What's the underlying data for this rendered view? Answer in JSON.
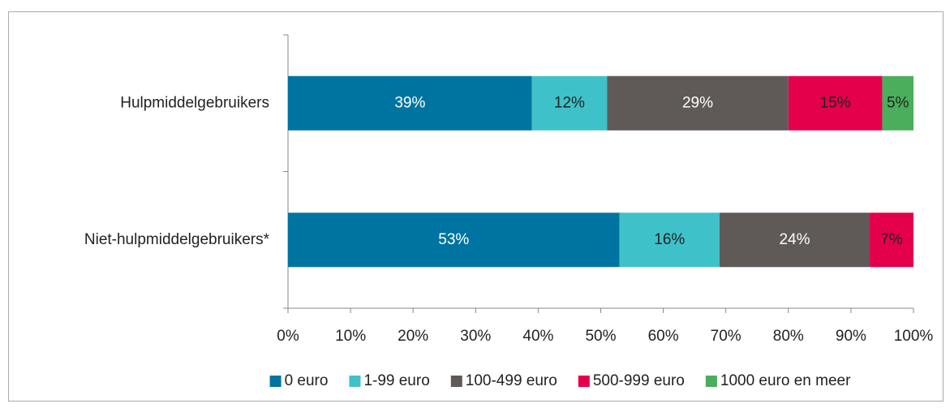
{
  "chart_data": {
    "type": "stacked_barh",
    "categories": [
      "Hulpmiddelgebruikers",
      "Niet-hulpmiddelgebruikers*"
    ],
    "series": [
      {
        "name": "0 euro",
        "color": "#0074a0",
        "label_color": "#ffffff",
        "values": [
          39,
          53
        ],
        "value_labels": [
          "39%",
          "53%"
        ]
      },
      {
        "name": "1-99 euro",
        "color": "#3fc1c9",
        "label_color": "#222222",
        "values": [
          12,
          16
        ],
        "value_labels": [
          "12%",
          "16%"
        ]
      },
      {
        "name": "100-499 euro",
        "color": "#5f5a57",
        "label_color": "#ffffff",
        "values": [
          29,
          24
        ],
        "value_labels": [
          "29%",
          "24%"
        ]
      },
      {
        "name": "500-999 euro",
        "color": "#e4004b",
        "label_color": "#222222",
        "values": [
          15,
          7
        ],
        "value_labels": [
          "15%",
          "7%"
        ]
      },
      {
        "name": "1000 euro en meer",
        "color": "#4aae5c",
        "label_color": "#222222",
        "values": [
          5,
          null
        ],
        "value_labels": [
          "5%",
          null
        ]
      }
    ],
    "xlim": [
      0,
      100
    ],
    "xticks": [
      {
        "value": 0,
        "label": "0%"
      },
      {
        "value": 10,
        "label": "10%"
      },
      {
        "value": 20,
        "label": "20%"
      },
      {
        "value": 30,
        "label": "30%"
      },
      {
        "value": 40,
        "label": "40%"
      },
      {
        "value": 50,
        "label": "50%"
      },
      {
        "value": 60,
        "label": "60%"
      },
      {
        "value": 70,
        "label": "70%"
      },
      {
        "value": 80,
        "label": "80%"
      },
      {
        "value": 90,
        "label": "90%"
      },
      {
        "value": 100,
        "label": "100%"
      }
    ],
    "legend": "bottom"
  }
}
